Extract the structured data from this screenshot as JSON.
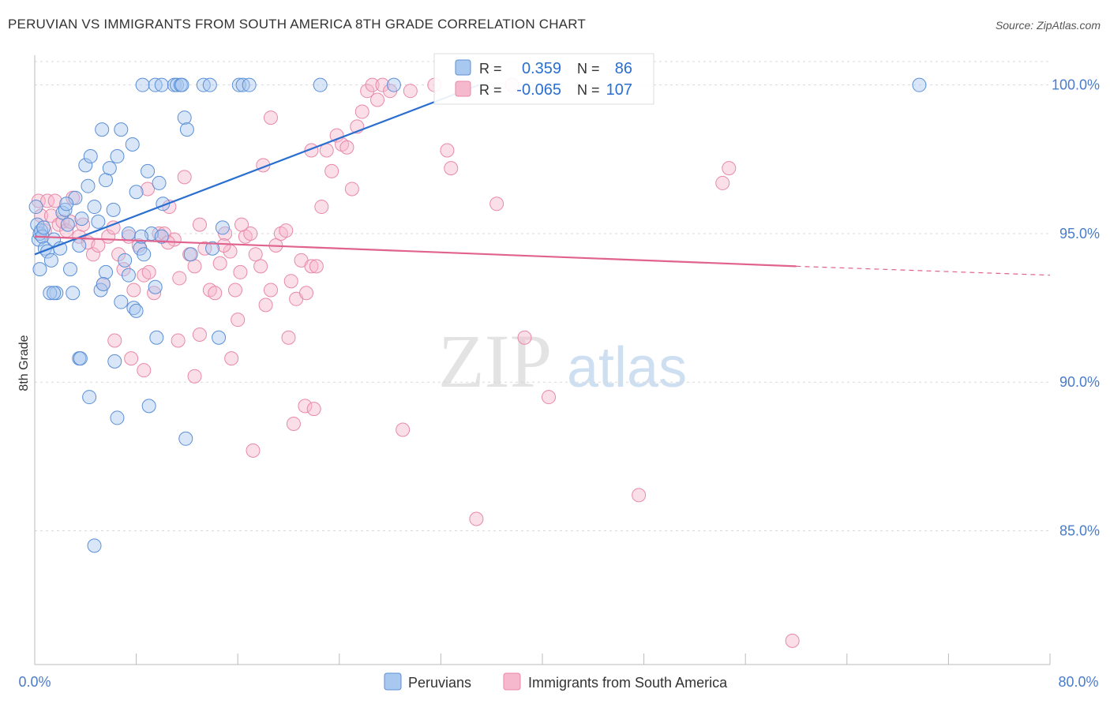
{
  "title": "PERUVIAN VS IMMIGRANTS FROM SOUTH AMERICA 8TH GRADE CORRELATION CHART",
  "source": "Source: ZipAtlas.com",
  "watermark": {
    "zip": "ZIP",
    "atlas": "atlas"
  },
  "stats": {
    "r_label": "R =",
    "n_label": "N =",
    "peruvians": {
      "r": "0.359",
      "n": "86"
    },
    "immigrants": {
      "r": "-0.065",
      "n": "107"
    }
  },
  "legend": {
    "peruvians": "Peruvians",
    "immigrants": "Immigrants from South America"
  },
  "colors": {
    "peruvians_fill": "#a9c8ef",
    "peruvians_stroke": "#5b8fd6",
    "peruvians_line": "#2a6fd0",
    "immigrants_fill": "#f6b8cc",
    "immigrants_stroke": "#e889a8",
    "immigrants_line": "#e0628d",
    "tick_label": "#4a7cc9",
    "grid": "#d8d8d8"
  },
  "chart_data": {
    "type": "scatter",
    "title": "PERUVIAN VS IMMIGRANTS FROM SOUTH AMERICA 8TH GRADE CORRELATION CHART",
    "xlabel": "",
    "ylabel": "8th Grade",
    "xlim": [
      0,
      80
    ],
    "ylim": [
      80.5,
      101.0
    ],
    "x_tick_labels": [
      "0.0%",
      "80.0%"
    ],
    "y_ticks": [
      100,
      95,
      90,
      85
    ],
    "y_tick_labels": [
      "100.0%",
      "95.0%",
      "90.0%",
      "85.0%"
    ],
    "grid": true,
    "legend_position": "bottom",
    "series": [
      {
        "name": "Peruvians",
        "trend": {
          "x0": 0.0,
          "y0": 94.3,
          "x1": 35.0,
          "y1": 100.0,
          "dashed_to_x": 0
        },
        "points": [
          [
            0.1,
            95.9
          ],
          [
            0.2,
            95.3
          ],
          [
            0.3,
            94.8
          ],
          [
            0.4,
            95.0
          ],
          [
            0.5,
            95.1
          ],
          [
            0.6,
            94.9
          ],
          [
            0.7,
            95.2
          ],
          [
            0.8,
            94.5
          ],
          [
            1.0,
            94.4
          ],
          [
            1.3,
            94.1
          ],
          [
            1.5,
            94.8
          ],
          [
            1.7,
            93.0
          ],
          [
            2.0,
            94.5
          ],
          [
            2.2,
            95.7
          ],
          [
            2.4,
            95.8
          ],
          [
            2.6,
            95.3
          ],
          [
            2.8,
            93.8
          ],
          [
            3.0,
            93.0
          ],
          [
            3.2,
            96.2
          ],
          [
            3.5,
            94.6
          ],
          [
            3.7,
            95.5
          ],
          [
            4.0,
            97.3
          ],
          [
            4.2,
            96.6
          ],
          [
            4.4,
            97.6
          ],
          [
            4.7,
            95.9
          ],
          [
            5.0,
            95.4
          ],
          [
            5.3,
            98.5
          ],
          [
            5.6,
            96.8
          ],
          [
            5.9,
            97.2
          ],
          [
            6.2,
            95.8
          ],
          [
            6.5,
            97.6
          ],
          [
            6.8,
            98.5
          ],
          [
            7.1,
            94.1
          ],
          [
            7.4,
            95.0
          ],
          [
            7.7,
            98.0
          ],
          [
            8.0,
            96.4
          ],
          [
            8.3,
            94.5
          ],
          [
            8.6,
            94.3
          ],
          [
            8.9,
            97.1
          ],
          [
            9.2,
            95.0
          ],
          [
            9.5,
            93.2
          ],
          [
            9.8,
            96.7
          ],
          [
            10.1,
            96.0
          ],
          [
            4.3,
            89.5
          ],
          [
            6.5,
            88.8
          ],
          [
            9.0,
            89.2
          ],
          [
            11.9,
            88.1
          ],
          [
            3.5,
            90.8
          ],
          [
            6.3,
            90.7
          ],
          [
            9.6,
            91.5
          ],
          [
            14.5,
            91.5
          ],
          [
            4.7,
            84.5
          ],
          [
            5.2,
            93.1
          ],
          [
            5.6,
            93.7
          ],
          [
            6.8,
            92.7
          ],
          [
            7.8,
            92.5
          ],
          [
            8.0,
            92.4
          ],
          [
            3.6,
            90.8
          ],
          [
            5.4,
            93.3
          ],
          [
            7.4,
            93.6
          ],
          [
            8.4,
            94.9
          ],
          [
            10.0,
            94.9
          ],
          [
            12.3,
            94.3
          ],
          [
            14.0,
            94.5
          ],
          [
            14.8,
            95.2
          ],
          [
            11.8,
            98.9
          ],
          [
            12.0,
            98.5
          ],
          [
            8.5,
            100.0
          ],
          [
            9.5,
            100.0
          ],
          [
            10.0,
            100.0
          ],
          [
            11.0,
            100.0
          ],
          [
            11.2,
            100.0
          ],
          [
            11.5,
            100.0
          ],
          [
            13.3,
            100.0
          ],
          [
            13.8,
            100.0
          ],
          [
            16.1,
            100.0
          ],
          [
            16.4,
            100.0
          ],
          [
            16.9,
            100.0
          ],
          [
            22.5,
            100.0
          ],
          [
            28.3,
            100.0
          ],
          [
            69.7,
            100.0
          ],
          [
            11.6,
            100.0
          ],
          [
            1.2,
            93.0
          ],
          [
            1.5,
            93.0
          ],
          [
            0.4,
            93.8
          ],
          [
            2.5,
            96.0
          ]
        ]
      },
      {
        "name": "Immigrants from South America",
        "trend": {
          "x0": 0.0,
          "y0": 94.9,
          "x1": 60.0,
          "y1": 93.9,
          "dashed_to_x": 80.0,
          "dashed_y": 93.6
        },
        "points": [
          [
            0.3,
            96.1
          ],
          [
            0.5,
            95.6
          ],
          [
            0.8,
            95.1
          ],
          [
            1.0,
            96.1
          ],
          [
            1.3,
            95.6
          ],
          [
            1.6,
            96.1
          ],
          [
            1.9,
            95.3
          ],
          [
            2.2,
            95.4
          ],
          [
            2.5,
            95.1
          ],
          [
            2.8,
            95.4
          ],
          [
            3.0,
            96.2
          ],
          [
            3.5,
            94.9
          ],
          [
            3.8,
            95.3
          ],
          [
            4.2,
            94.7
          ],
          [
            4.6,
            94.3
          ],
          [
            5.0,
            94.6
          ],
          [
            5.4,
            93.3
          ],
          [
            5.8,
            94.9
          ],
          [
            6.2,
            95.2
          ],
          [
            6.6,
            94.3
          ],
          [
            7.0,
            93.8
          ],
          [
            7.4,
            94.9
          ],
          [
            7.8,
            93.1
          ],
          [
            8.2,
            94.6
          ],
          [
            8.6,
            93.6
          ],
          [
            9.0,
            93.7
          ],
          [
            9.4,
            93.0
          ],
          [
            9.8,
            95.0
          ],
          [
            10.2,
            95.0
          ],
          [
            10.6,
            95.9
          ],
          [
            11.0,
            94.8
          ],
          [
            11.4,
            93.5
          ],
          [
            11.8,
            96.9
          ],
          [
            12.2,
            94.3
          ],
          [
            12.6,
            93.9
          ],
          [
            13.0,
            95.3
          ],
          [
            13.4,
            94.5
          ],
          [
            13.8,
            93.1
          ],
          [
            14.2,
            93.0
          ],
          [
            14.6,
            94.0
          ],
          [
            15.0,
            95.0
          ],
          [
            15.4,
            94.4
          ],
          [
            15.8,
            93.1
          ],
          [
            16.2,
            93.7
          ],
          [
            16.6,
            94.9
          ],
          [
            17.0,
            95.0
          ],
          [
            17.4,
            94.3
          ],
          [
            17.8,
            93.9
          ],
          [
            18.2,
            92.6
          ],
          [
            18.6,
            93.1
          ],
          [
            19.0,
            94.6
          ],
          [
            19.4,
            95.0
          ],
          [
            19.8,
            95.1
          ],
          [
            20.2,
            93.4
          ],
          [
            20.6,
            92.8
          ],
          [
            21.0,
            94.1
          ],
          [
            21.4,
            93.0
          ],
          [
            21.8,
            93.9
          ],
          [
            22.2,
            93.9
          ],
          [
            22.6,
            95.9
          ],
          [
            23.0,
            97.8
          ],
          [
            23.4,
            97.1
          ],
          [
            23.8,
            98.3
          ],
          [
            24.2,
            98.0
          ],
          [
            24.6,
            97.9
          ],
          [
            25.0,
            96.5
          ],
          [
            25.4,
            98.6
          ],
          [
            25.8,
            99.1
          ],
          [
            26.2,
            99.8
          ],
          [
            26.6,
            100.0
          ],
          [
            27.0,
            99.5
          ],
          [
            27.4,
            100.0
          ],
          [
            28.0,
            99.8
          ],
          [
            29.6,
            99.8
          ],
          [
            31.5,
            100.0
          ],
          [
            32.5,
            97.8
          ],
          [
            32.8,
            97.2
          ],
          [
            36.4,
            96.0
          ],
          [
            37.6,
            100.0
          ],
          [
            54.2,
            96.7
          ],
          [
            54.7,
            97.2
          ],
          [
            10.5,
            94.7
          ],
          [
            8.9,
            96.5
          ],
          [
            6.3,
            91.4
          ],
          [
            8.6,
            90.4
          ],
          [
            11.3,
            91.4
          ],
          [
            12.6,
            90.2
          ],
          [
            13.0,
            91.6
          ],
          [
            15.5,
            90.8
          ],
          [
            16.0,
            92.1
          ],
          [
            17.2,
            87.7
          ],
          [
            20.0,
            91.5
          ],
          [
            20.4,
            88.6
          ],
          [
            21.3,
            89.2
          ],
          [
            22.0,
            89.1
          ],
          [
            29.0,
            88.4
          ],
          [
            34.8,
            85.4
          ],
          [
            38.6,
            91.5
          ],
          [
            40.5,
            89.5
          ],
          [
            47.6,
            86.2
          ],
          [
            59.7,
            81.3
          ],
          [
            16.3,
            95.3
          ],
          [
            18.6,
            98.9
          ],
          [
            21.8,
            97.8
          ],
          [
            18.0,
            97.3
          ],
          [
            14.9,
            94.6
          ],
          [
            7.6,
            90.8
          ]
        ]
      }
    ]
  }
}
